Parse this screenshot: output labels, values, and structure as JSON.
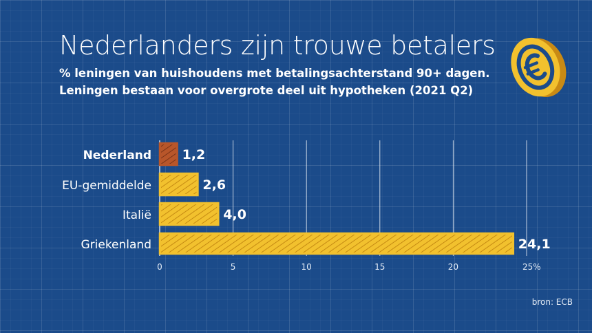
{
  "title": "Nederlanders zijn trouwe betalers",
  "subtitle_lines": [
    "% leningen van huishoudens met betalingsachterstand 90+ dagen.",
    "Leningen bestaan voor overgrote deel uit hypotheken (2021 Q2)"
  ],
  "source": "bron: ECB",
  "colors": {
    "background": "#1b4b8a",
    "bar": "#f2c12e",
    "bar_highlight": "#b8562a",
    "coin": "#f2c12e"
  },
  "icons": {
    "coin": "euro-coin-icon"
  },
  "chart_data": {
    "type": "bar",
    "orientation": "horizontal",
    "title": "Nederlanders zijn trouwe betalers",
    "subtitle": "% leningen van huishoudens met betalingsachterstand 90+ dagen. Leningen bestaan voor overgrote deel uit hypotheken (2021 Q2)",
    "categories": [
      "Nederland",
      "EU-gemiddelde",
      "Italië",
      "Griekenland"
    ],
    "values": [
      1.2,
      2.6,
      4.0,
      24.1
    ],
    "value_labels": [
      "1,2",
      "2,6",
      "4,0",
      "24,1"
    ],
    "highlight": "Nederland",
    "xlim": [
      0,
      25
    ],
    "xticks": [
      0,
      5,
      10,
      15,
      20,
      25
    ],
    "xtick_labels": [
      "0",
      "5",
      "10",
      "15",
      "20",
      "25%"
    ],
    "xlabel": "",
    "ylabel": "",
    "grid": true
  }
}
